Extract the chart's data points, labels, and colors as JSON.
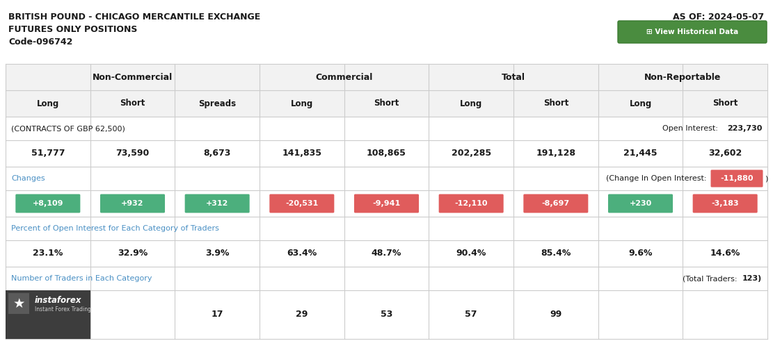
{
  "title_line1": "BRITISH POUND - CHICAGO MERCANTILE EXCHANGE",
  "title_line2": "FUTURES ONLY POSITIONS",
  "title_line3": "Code-096742",
  "as_of": "AS OF: 2024-05-07",
  "header1_labels": [
    "Non-Commercial",
    "Commercial",
    "Total",
    "Non-Reportable"
  ],
  "header2_labels": [
    "Long",
    "Short",
    "Spreads",
    "Long",
    "Short",
    "Long",
    "Short",
    "Long",
    "Short"
  ],
  "contracts_label": "(CONTRACTS OF GBP 62,500)",
  "open_interest_label": "Open Interest: ",
  "open_interest_value": "223,730",
  "main_values": [
    "51,777",
    "73,590",
    "8,673",
    "141,835",
    "108,865",
    "202,285",
    "191,128",
    "21,445",
    "32,602"
  ],
  "changes_label": "Changes",
  "change_oi_label": "(Change In Open Interest: ",
  "change_oi_value": "-11,880",
  "change_oi_color": "#e05c5c",
  "changes": [
    "+8,109",
    "+932",
    "+312",
    "-20,531",
    "-9,941",
    "-12,110",
    "-8,697",
    "+230",
    "-3,183"
  ],
  "changes_colors": [
    "#4caf7d",
    "#4caf7d",
    "#4caf7d",
    "#e05c5c",
    "#e05c5c",
    "#e05c5c",
    "#e05c5c",
    "#4caf7d",
    "#e05c5c"
  ],
  "pct_label": "Percent of Open Interest for Each Category of Traders",
  "pct_values": [
    "23.1%",
    "32.9%",
    "3.9%",
    "63.4%",
    "48.7%",
    "90.4%",
    "85.4%",
    "9.6%",
    "14.6%"
  ],
  "traders_label": "Number of Traders in Each Category",
  "total_traders_label": "(Total Traders: ",
  "total_traders_value": "123",
  "traders_values": [
    "",
    "",
    "17",
    "29",
    "53",
    "57",
    "99",
    "",
    ""
  ],
  "bg_color": "#ffffff",
  "header_bg": "#f2f2f2",
  "border_color": "#cccccc",
  "section_label_color": "#4a90c4",
  "title_color": "#1a1a1a",
  "value_color": "#1a1a1a",
  "btn_color": "#4a8c3f",
  "btn_text": "⊞ View Historical Data"
}
